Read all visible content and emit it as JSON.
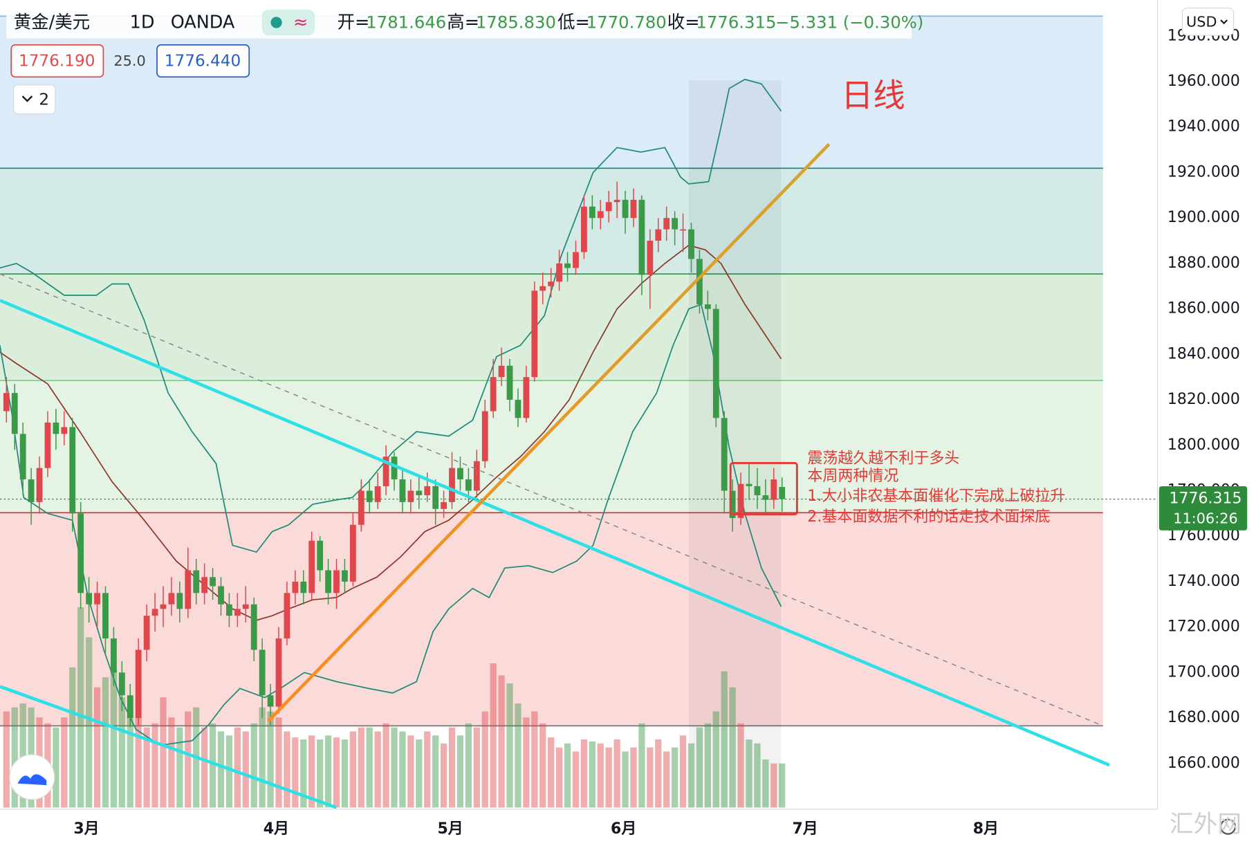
{
  "header": {
    "symbol": "黄金/美元",
    "interval": "1D",
    "exchange": "OANDA",
    "ohlc": [
      {
        "label": "开=",
        "value": "1781.646"
      },
      {
        "label": "高=",
        "value": "1785.830"
      },
      {
        "label": "低=",
        "value": "1770.780"
      },
      {
        "label": "收=",
        "value": "1776.315"
      }
    ],
    "change": "−5.331 (−0.30%)",
    "bid": "1776.190",
    "spread": "25.0",
    "ask": "1776.440",
    "indicators": "2",
    "currency": "USD"
  },
  "chart_data": {
    "type": "candlestick",
    "annotation": "日线",
    "notes": [
      "震荡越久越不利于多头",
      "本周两种情况",
      "1.大小非农基本面催化下完成上破拉升",
      "2.基本面数据不利的话走技术面探底"
    ],
    "up_color": "#e0474c",
    "down_color": "#3b9a48",
    "xlim": [
      -0.78,
      139.5
    ],
    "xticks": [
      {
        "value": 9.7,
        "label": "3月"
      },
      {
        "value": 32.7,
        "label": "4月"
      },
      {
        "value": 53.8,
        "label": "5月"
      },
      {
        "value": 74.8,
        "label": "6月"
      },
      {
        "value": 96.8,
        "label": "7月"
      },
      {
        "value": 118.7,
        "label": "8月"
      }
    ],
    "ylim": [
      1639.9,
      1995.9
    ],
    "yticks": [
      {
        "value": 1660,
        "label": "1660.000"
      },
      {
        "value": 1680,
        "label": "1680.000"
      },
      {
        "value": 1700,
        "label": "1700.000"
      },
      {
        "value": 1720,
        "label": "1720.000"
      },
      {
        "value": 1740,
        "label": "1740.000"
      },
      {
        "value": 1760,
        "label": "1760.000"
      },
      {
        "value": 1780,
        "label": "1780.000"
      },
      {
        "value": 1800,
        "label": "1800.000"
      },
      {
        "value": 1820,
        "label": "1820.000"
      },
      {
        "value": 1840,
        "label": "1840.000"
      },
      {
        "value": 1860,
        "label": "1860.000"
      },
      {
        "value": 1880,
        "label": "1880.000"
      },
      {
        "value": 1900,
        "label": "1900.000"
      },
      {
        "value": 1920,
        "label": "1920.000"
      },
      {
        "value": 1940,
        "label": "1940.000"
      },
      {
        "value": 1960,
        "label": "1960.000"
      },
      {
        "value": 1980,
        "label": "1980.000"
      }
    ],
    "last_price": 1776.315,
    "countdown": "11:06:26",
    "candles": {
      "open": [
        1815,
        1823,
        1805,
        1785,
        1775,
        1790,
        1810,
        1805,
        1808,
        1770,
        1735,
        1730,
        1735,
        1715,
        1700,
        1690,
        1680,
        1710,
        1725,
        1728,
        1730,
        1735,
        1728,
        1745,
        1735,
        1742,
        1738,
        1730,
        1725,
        1728,
        1730,
        1710,
        1690,
        1685,
        1715,
        1735,
        1740,
        1735,
        1758,
        1745,
        1735,
        1745,
        1740,
        1765,
        1780,
        1775,
        1782,
        1795,
        1785,
        1775,
        1780,
        1778,
        1782,
        1772,
        1775,
        1790,
        1785,
        1780,
        1793,
        1815,
        1830,
        1835,
        1820,
        1812,
        1830,
        1868,
        1870,
        1872,
        1880,
        1878,
        1885,
        1905,
        1900,
        1903,
        1907,
        1908,
        1900,
        1908,
        1875,
        1890,
        1895,
        1900,
        1895,
        1895,
        1882,
        1862,
        1860,
        1812,
        1780,
        1768,
        1783,
        1782,
        1778,
        1776,
        1781.646
      ],
      "high": [
        1830,
        1827,
        1810,
        1790,
        1795,
        1815,
        1816,
        1815,
        1812,
        1775,
        1742,
        1740,
        1738,
        1720,
        1705,
        1695,
        1715,
        1730,
        1735,
        1738,
        1742,
        1740,
        1755,
        1750,
        1748,
        1746,
        1742,
        1735,
        1735,
        1738,
        1733,
        1715,
        1695,
        1720,
        1740,
        1745,
        1745,
        1762,
        1760,
        1750,
        1750,
        1750,
        1770,
        1785,
        1785,
        1788,
        1800,
        1797,
        1790,
        1785,
        1786,
        1788,
        1785,
        1780,
        1797,
        1795,
        1790,
        1798,
        1820,
        1838,
        1843,
        1838,
        1825,
        1835,
        1872,
        1876,
        1878,
        1886,
        1885,
        1890,
        1910,
        1910,
        1908,
        1912,
        1916,
        1912,
        1913,
        1910,
        1895,
        1900,
        1905,
        1903,
        1902,
        1898,
        1886,
        1868,
        1862,
        1815,
        1785,
        1788,
        1792,
        1790,
        1785,
        1790,
        1785.83
      ],
      "low": [
        1810,
        1798,
        1778,
        1765,
        1770,
        1786,
        1798,
        1800,
        1762,
        1728,
        1722,
        1720,
        1708,
        1694,
        1683,
        1676,
        1677,
        1705,
        1718,
        1720,
        1725,
        1722,
        1724,
        1730,
        1730,
        1732,
        1725,
        1720,
        1720,
        1722,
        1705,
        1680,
        1677,
        1682,
        1712,
        1730,
        1730,
        1732,
        1740,
        1730,
        1728,
        1735,
        1738,
        1762,
        1770,
        1772,
        1778,
        1780,
        1770,
        1770,
        1772,
        1775,
        1765,
        1768,
        1772,
        1780,
        1775,
        1777,
        1790,
        1812,
        1826,
        1815,
        1808,
        1810,
        1828,
        1862,
        1865,
        1868,
        1872,
        1875,
        1882,
        1895,
        1895,
        1898,
        1900,
        1893,
        1896,
        1866,
        1860,
        1885,
        1890,
        1888,
        1885,
        1876,
        1858,
        1855,
        1808,
        1770,
        1762,
        1765,
        1776,
        1772,
        1770,
        1772,
        1770.78
      ],
      "close": [
        1823,
        1805,
        1785,
        1775,
        1790,
        1810,
        1805,
        1808,
        1770,
        1735,
        1730,
        1735,
        1715,
        1700,
        1690,
        1680,
        1710,
        1725,
        1728,
        1730,
        1735,
        1728,
        1745,
        1735,
        1742,
        1738,
        1730,
        1725,
        1728,
        1730,
        1710,
        1690,
        1685,
        1715,
        1735,
        1740,
        1735,
        1758,
        1745,
        1735,
        1745,
        1740,
        1765,
        1780,
        1775,
        1782,
        1795,
        1785,
        1775,
        1780,
        1778,
        1782,
        1772,
        1775,
        1790,
        1785,
        1780,
        1793,
        1815,
        1830,
        1835,
        1820,
        1812,
        1830,
        1868,
        1870,
        1872,
        1880,
        1878,
        1885,
        1905,
        1900,
        1903,
        1907,
        1908,
        1900,
        1908,
        1875,
        1890,
        1895,
        1900,
        1895,
        1895,
        1882,
        1862,
        1860,
        1812,
        1780,
        1768,
        1783,
        1782,
        1778,
        1776,
        1785,
        1776.315
      ]
    },
    "volume_lim": [
      0,
      100
    ],
    "volume": [
      48,
      50,
      52,
      50,
      45,
      42,
      40,
      45,
      70,
      100,
      85,
      60,
      65,
      70,
      55,
      50,
      45,
      40,
      42,
      55,
      45,
      40,
      48,
      50,
      40,
      42,
      38,
      36,
      40,
      38,
      42,
      50,
      48,
      45,
      38,
      35,
      34,
      36,
      34,
      36,
      35,
      34,
      38,
      40,
      40,
      38,
      42,
      40,
      38,
      36,
      34,
      38,
      36,
      32,
      40,
      36,
      42,
      40,
      48,
      72,
      66,
      62,
      52,
      45,
      48,
      42,
      35,
      30,
      32,
      28,
      34,
      33,
      32,
      30,
      34,
      28,
      30,
      42,
      30,
      34,
      28,
      30,
      36,
      32,
      40,
      42,
      48,
      68,
      60,
      42,
      34,
      32,
      24,
      22,
      22
    ],
    "bands": [
      {
        "color": "#1f8a7a",
        "x": [
          -0.8,
          1.2,
          3.1,
          7.0,
          10.9,
          12.8,
          14.8,
          16.7,
          19.6,
          22.5,
          25.4,
          27.4,
          30.3,
          32.2,
          34.2,
          37.1,
          40.0,
          41.9,
          43.9,
          46.8,
          49.7,
          53.6,
          56.5,
          59.4,
          62.3,
          65.2,
          67.2,
          69.1,
          71.1,
          74.0,
          76.9,
          79.8,
          81.7,
          82.7,
          85.1,
          86.6,
          87.6,
          89.5,
          91.5,
          93.9
        ],
        "values": [
          1878,
          1880,
          1876,
          1866,
          1866,
          1871,
          1871,
          1855,
          1823,
          1806,
          1792,
          1756,
          1753,
          1762,
          1765,
          1774,
          1776,
          1777,
          1784,
          1797,
          1806,
          1804,
          1811,
          1839,
          1844,
          1857,
          1883,
          1901,
          1920,
          1931,
          1929,
          1931,
          1918,
          1915,
          1916,
          1940,
          1957,
          1961,
          1959,
          1947
        ]
      },
      {
        "color": "#8b3a2a",
        "x": [
          -0.8,
          1.2,
          5.0,
          8.9,
          12.8,
          16.7,
          20.6,
          24.5,
          27.4,
          30.3,
          32.2,
          34.2,
          37.1,
          40.0,
          41.9,
          44.9,
          47.8,
          50.7,
          53.6,
          56.5,
          59.4,
          62.3,
          65.2,
          68.2,
          71.1,
          74.0,
          76.9,
          79.8,
          82.7,
          84.7,
          86.6,
          89.5,
          93.9
        ],
        "values": [
          1841,
          1836,
          1827,
          1806,
          1784,
          1767,
          1749,
          1737,
          1728,
          1723,
          1725,
          1728,
          1732,
          1733,
          1737,
          1742,
          1751,
          1762,
          1767,
          1776,
          1786,
          1795,
          1806,
          1820,
          1841,
          1860,
          1871,
          1880,
          1888,
          1886,
          1880,
          1862,
          1838
        ]
      },
      {
        "color": "#1f8a7a",
        "x": [
          -0.8,
          0.7,
          2.1,
          5.0,
          8.0,
          9.9,
          11.8,
          13.8,
          15.7,
          18.6,
          22.5,
          24.5,
          26.4,
          28.3,
          31.3,
          33.2,
          36.1,
          40.0,
          43.9,
          46.8,
          49.7,
          51.7,
          53.6,
          56.5,
          58.5,
          60.4,
          63.3,
          66.2,
          69.1,
          71.1,
          73.0,
          75.9,
          78.8,
          80.8,
          82.7,
          84.2,
          85.6,
          87.6,
          89.5,
          91.5,
          93.9
        ],
        "values": [
          1844,
          1813,
          1777,
          1770,
          1767,
          1733,
          1710,
          1689,
          1675,
          1668,
          1670,
          1677,
          1686,
          1693,
          1689,
          1693,
          1700,
          1696,
          1693,
          1691,
          1696,
          1718,
          1728,
          1737,
          1733,
          1746,
          1747,
          1744,
          1749,
          1756,
          1777,
          1806,
          1823,
          1844,
          1860,
          1862,
          1841,
          1799,
          1770,
          1746,
          1729
        ]
      }
    ]
  },
  "watermark": "汇外网"
}
